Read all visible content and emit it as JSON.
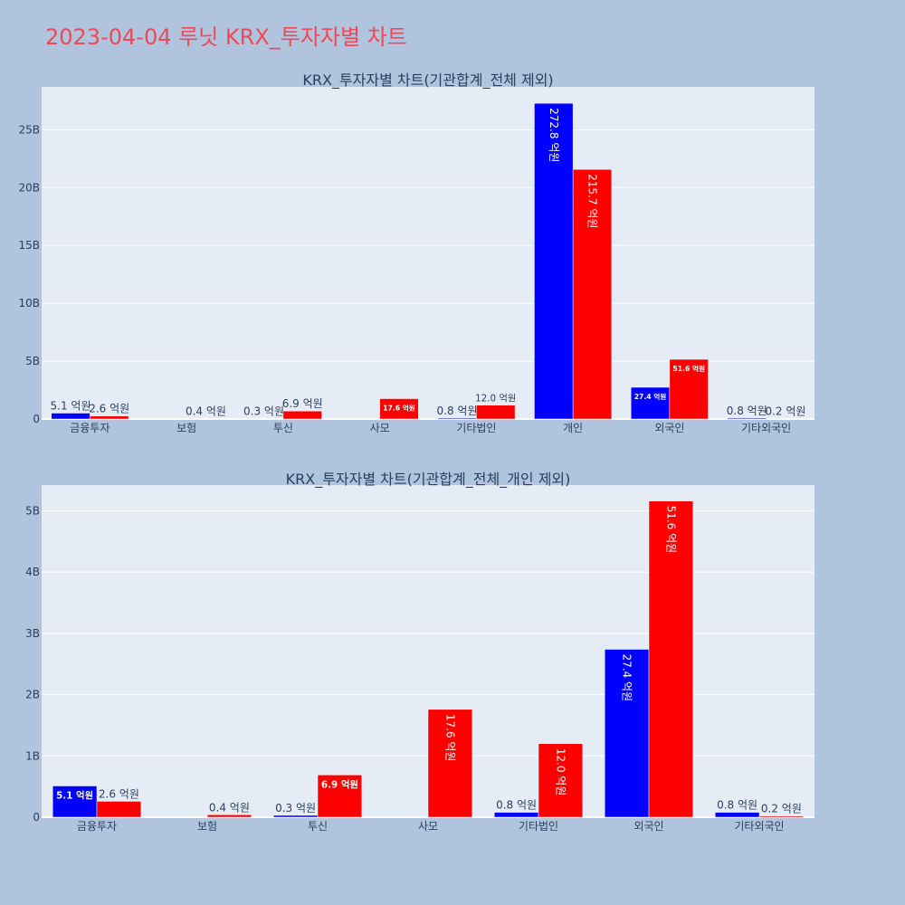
{
  "title": "2023-04-04 루닛 KRX_투자자별 차트",
  "colors": {
    "buy": "#0000ff",
    "sell": "#ff0000",
    "title": "#ec4a5a",
    "paper": "#b0c4de",
    "plot": "#e5ecf6"
  },
  "chart_data": [
    {
      "type": "bar",
      "title": "KRX_투자자별 차트(기관합계_전체 제외)",
      "categories": [
        "금융투자",
        "보험",
        "투신",
        "사모",
        "기타법인",
        "개인",
        "외국인",
        "기타외국인"
      ],
      "series": [
        {
          "values": [
            510000000,
            0,
            30000000,
            0,
            80000000,
            27280000000,
            2740000000,
            80000000
          ],
          "labels": [
            "5.1 억원",
            "",
            "0.3 억원",
            "",
            "0.8 억원",
            "272.8 억원",
            "27.4 억원",
            "0.8 억원"
          ]
        },
        {
          "values": [
            260000000,
            40000000,
            690000000,
            1760000000,
            1200000000,
            21570000000,
            5160000000,
            20000000
          ],
          "labels": [
            "2.6 억원",
            "0.4 억원",
            "6.9 억원",
            "17.6 억원",
            "12.0 억원",
            "215.7 억원",
            "51.6 억원",
            "0.2 억원"
          ]
        }
      ],
      "yticks": [
        0,
        5000000000,
        10000000000,
        15000000000,
        20000000000,
        25000000000
      ],
      "ytick_labels": [
        "0",
        "5B",
        "10B",
        "15B",
        "20B",
        "25B"
      ],
      "ylim": [
        0,
        28700000000
      ],
      "grid": true
    },
    {
      "type": "bar",
      "title": "KRX_투자자별 차트(기관합계_전체_개인 제외)",
      "categories": [
        "금융투자",
        "보험",
        "투신",
        "사모",
        "기타법인",
        "외국인",
        "기타외국인"
      ],
      "series": [
        {
          "values": [
            510000000,
            0,
            30000000,
            0,
            80000000,
            2740000000,
            80000000
          ],
          "labels": [
            "5.1 억원",
            "",
            "0.3 억원",
            "",
            "0.8 억원",
            "27.4 억원",
            "0.8 억원"
          ]
        },
        {
          "values": [
            260000000,
            40000000,
            690000000,
            1760000000,
            1200000000,
            5160000000,
            20000000
          ],
          "labels": [
            "2.6 억원",
            "0.4 억원",
            "6.9 억원",
            "17.6 억원",
            "12.0 억원",
            "51.6 억원",
            "0.2 억원"
          ]
        }
      ],
      "yticks": [
        0,
        1000000000,
        2000000000,
        3000000000,
        4000000000,
        5000000000
      ],
      "ytick_labels": [
        "0",
        "1B",
        "2B",
        "3B",
        "4B",
        "5B"
      ],
      "ylim": [
        0,
        5420000000
      ],
      "grid": true
    }
  ]
}
